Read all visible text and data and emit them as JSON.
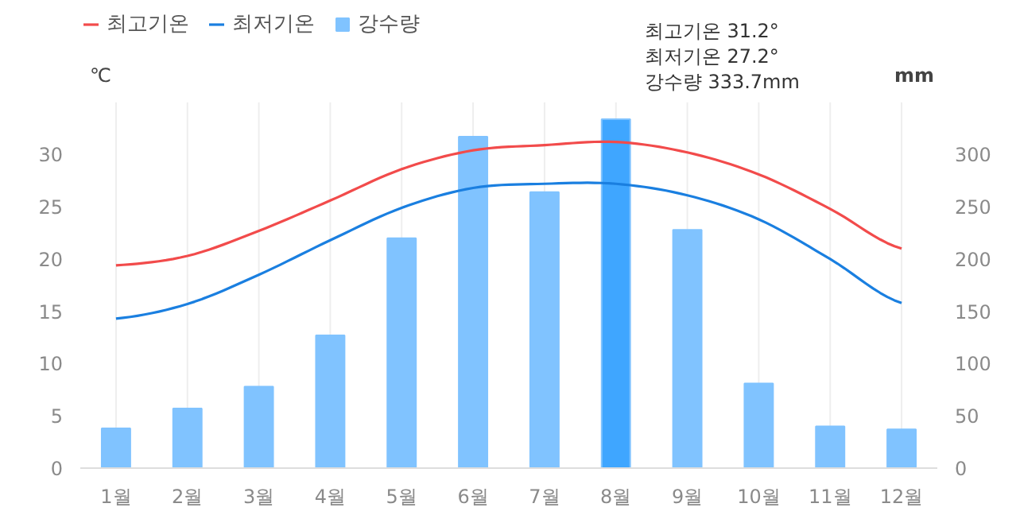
{
  "chart_data": {
    "type": "line",
    "categories": [
      "1월",
      "2월",
      "3월",
      "4월",
      "5월",
      "6월",
      "7월",
      "8월",
      "9월",
      "10월",
      "11월",
      "12월"
    ],
    "series": [
      {
        "name": "최고기온",
        "color": "#f24b4b",
        "values": [
          19.4,
          20.3,
          22.7,
          25.6,
          28.6,
          30.4,
          30.9,
          31.2,
          30.2,
          28.1,
          24.8,
          21.0
        ]
      },
      {
        "name": "최저기온",
        "color": "#1a7fe0",
        "values": [
          14.3,
          15.7,
          18.5,
          21.8,
          24.9,
          26.8,
          27.2,
          27.2,
          26.1,
          23.8,
          20.0,
          15.8
        ]
      },
      {
        "name": "강수량",
        "type": "bar",
        "axis": "y2",
        "color": "#80c3ff",
        "colors": [
          "#80c3ff",
          "#80c3ff",
          "#80c3ff",
          "#80c3ff",
          "#80c3ff",
          "#80c3ff",
          "#80c3ff",
          "#3fa6ff",
          "#80c3ff",
          "#80c3ff",
          "#80c3ff",
          "#80c3ff"
        ],
        "values": [
          38,
          57,
          78,
          127,
          220,
          317,
          264,
          333.7,
          228,
          81,
          40,
          37
        ]
      }
    ],
    "ylabel": "℃",
    "y2label": "mm",
    "ylim": [
      0,
      35
    ],
    "yticks": [
      0,
      5,
      10,
      15,
      20,
      25,
      30
    ],
    "y2lim": [
      0,
      350
    ],
    "y2ticks": [
      0,
      50,
      100,
      150,
      200,
      250,
      300
    ],
    "annotations": [
      "최고기온 31.2°",
      "최저기온 27.2°",
      "강수량 333.7mm"
    ],
    "grid": "x",
    "legend": "top left",
    "marker": "none",
    "line_style": "solid"
  }
}
